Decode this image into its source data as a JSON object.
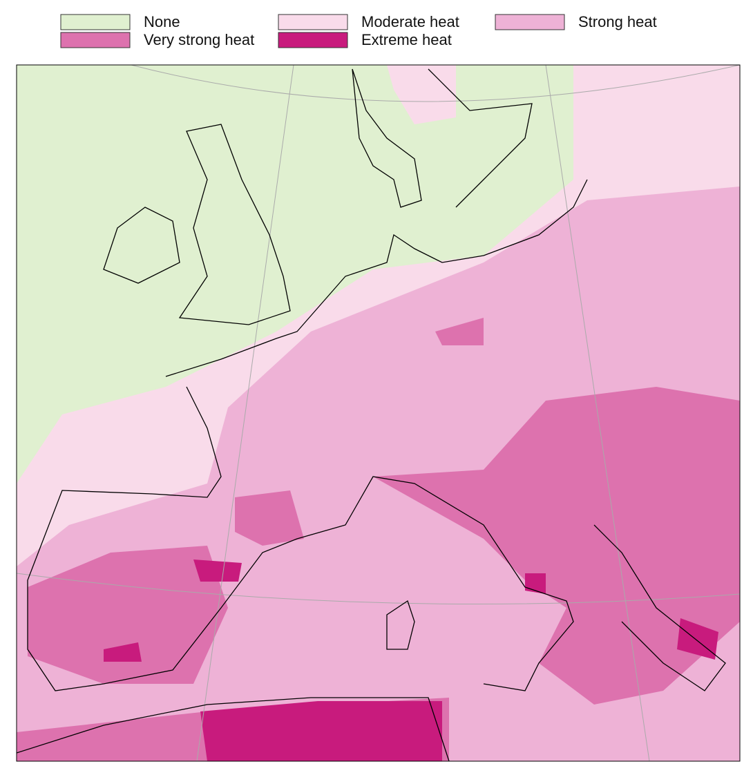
{
  "legend": {
    "items": [
      {
        "label": "None",
        "color": "#e0f0d0"
      },
      {
        "label": "Moderate heat",
        "color": "#f9dbea"
      },
      {
        "label": "Strong heat",
        "color": "#eeb2d6"
      },
      {
        "label": "Very strong heat",
        "color": "#dd72ae"
      },
      {
        "label": "Extreme heat",
        "color": "#c81b7d"
      }
    ]
  }
}
